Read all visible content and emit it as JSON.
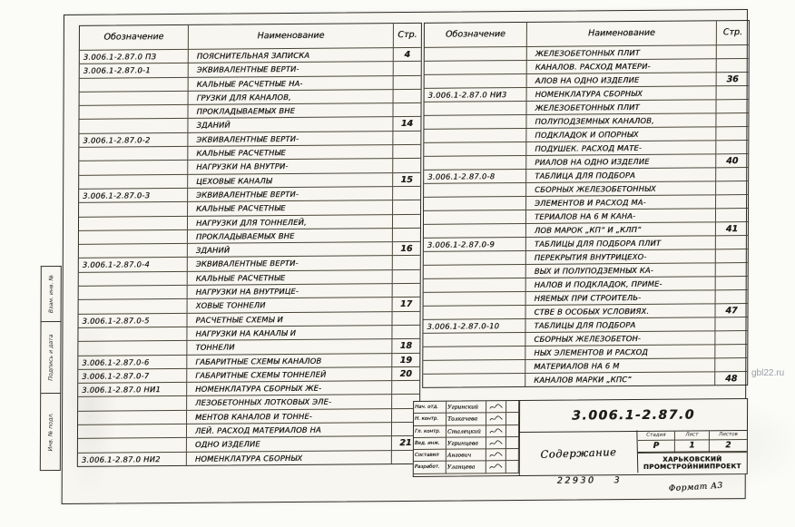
{
  "watermark": "gbl22.ru",
  "side_strip": {
    "labels": [
      "Взам. инв. №",
      "Подпись и дата",
      "Инв. № подл."
    ]
  },
  "tables": {
    "headers": {
      "designation": "Обозначение",
      "name": "Наименование",
      "page": "Стр."
    },
    "left": {
      "entries": [
        {
          "designation": "3.006.1-2.87.0 ПЗ",
          "lines": [
            "Пояснительная записка"
          ],
          "page": "4"
        },
        {
          "designation": "3.006.1-2.87.0-1",
          "lines": [
            "Эквивалентные верти-",
            "кальные расчетные на-",
            "грузки для каналов,",
            "прокладываемых вне",
            "зданий"
          ],
          "page": "14"
        },
        {
          "designation": "3.006.1-2.87.0-2",
          "lines": [
            "Эквивалентные верти-",
            "кальные расчетные",
            "нагрузки на внутри-",
            "цеховые каналы"
          ],
          "page": "15"
        },
        {
          "designation": "3.006.1-2.87.0-3",
          "lines": [
            "Эквивалентные верти-",
            "кальные расчетные",
            "нагрузки для тоннелей,",
            "прокладываемых вне",
            "зданий"
          ],
          "page": "16"
        },
        {
          "designation": "3.006.1-2.87.0-4",
          "lines": [
            "Эквивалентные верти-",
            "кальные расчетные",
            "нагрузки на внутрице-",
            "ховые тоннели"
          ],
          "page": "17"
        },
        {
          "designation": "3.006.1-2.87.0-5",
          "lines": [
            "Расчетные схемы и",
            "нагрузки на каналы и",
            "тоннели"
          ],
          "page": "18"
        },
        {
          "designation": "3.006.1-2.87.0-6",
          "lines": [
            "Габаритные схемы каналов"
          ],
          "page": "19"
        },
        {
          "designation": "3.006.1-2.87.0-7",
          "lines": [
            "Габаритные схемы тоннелей"
          ],
          "page": "20"
        },
        {
          "designation": "3.006.1-2.87.0 НИ1",
          "lines": [
            "Номенклатура сборных же-",
            "лезобетонных лотковых эле-",
            "ментов каналов и тонне-",
            "лей. Расход материалов на",
            "одно изделие"
          ],
          "page": "21"
        },
        {
          "designation": "3.006.1-2.87.0 НИ2",
          "lines": [
            "Номенклатура сборных"
          ],
          "page": ""
        }
      ]
    },
    "right": {
      "entries": [
        {
          "designation": "",
          "lines": [
            "железобетонных плит",
            "каналов. Расход матери-",
            "алов на одно изделие"
          ],
          "page": "36"
        },
        {
          "designation": "3.006.1-2.87.0 НИ3",
          "lines": [
            "Номенклатура сборных",
            "железобетонных плит",
            "полуподземных каналов,",
            "подкладок и опорных",
            "подушек. Расход мате-",
            "риалов на одно изделие"
          ],
          "page": "40"
        },
        {
          "designation": "3.006.1-2.87.0-8",
          "lines": [
            "Таблица для подбора",
            "сборных железобетонных",
            "элементов и расход ма-",
            "териалов на 6 м кана-",
            "лов марок „КП“ и „КЛп“"
          ],
          "page": "41"
        },
        {
          "designation": "3.006.1-2.87.0-9",
          "lines": [
            "Таблицы для подбора плит",
            "перекрытия внутрицехо-",
            "вых и полуподземных ка-",
            "налов и подкладок, приме-",
            "няемых при строитель-",
            "стве в особых условиях."
          ],
          "page": "47"
        },
        {
          "designation": "3.006.1-2.87.0-10",
          "lines": [
            "Таблицы для подбора",
            "сборных железобетон-",
            "ных элементов и расход",
            "материалов на 6 м",
            "каналов марки „КПс“"
          ],
          "page": "48"
        }
      ]
    }
  },
  "title_block": {
    "designation": "3.006.1-2.87.0",
    "doc_title": "Содержание",
    "stage_cols": [
      "Стадия",
      "Лист",
      "Листов"
    ],
    "stage_vals": [
      "Р",
      "1",
      "2"
    ],
    "organization": [
      "Харьковский",
      "Промстройниипроект"
    ],
    "signature_rows": [
      {
        "role": "Нач. отд.",
        "name": "Угринский"
      },
      {
        "role": "Н. контр.",
        "name": "Толкачева"
      },
      {
        "role": "Гл. контр.",
        "name": "Сталецкий"
      },
      {
        "role": "Вед. инж.",
        "name": "Угринцева"
      },
      {
        "role": "Составил",
        "name": "Ангович"
      },
      {
        "role": "Разработ.",
        "name": "Уланцева"
      }
    ]
  },
  "footer": {
    "order_number": "22930",
    "copy_number": "3",
    "format_label": "Формат А3"
  }
}
